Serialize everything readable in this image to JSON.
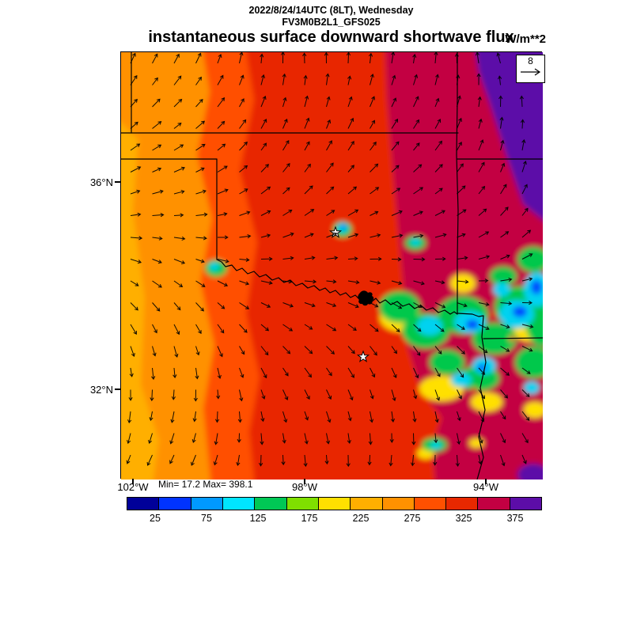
{
  "header": {
    "datetime_line": "2022/8/24/14UTC (8LT), Wednesday",
    "model_line": "FV3M0B2L1_GFS025"
  },
  "title": {
    "main": "instantaneous surface downward shortwave flux",
    "units": "W/m**2"
  },
  "map": {
    "lat_labels": [
      "36°N",
      "32°N"
    ],
    "lon_labels": [
      "102°W",
      "98°W",
      "94°W"
    ],
    "stats": "Min= 17.2 Max= 398.1",
    "reference_vector": {
      "value": "8"
    },
    "palette": {
      "amber": "#FFAF00",
      "orange": "#FF9100",
      "red_orange": "#FF5000",
      "red": "#E82800",
      "crimson": "#C30042",
      "purple": "#5C0DA8",
      "cloud_yellow": "#FFE000",
      "cloud_green": "#00C84B",
      "cloud_cyan": "#00D2F0",
      "cloud_blue": "#0048FF",
      "border": "#000000"
    }
  },
  "colorbar": {
    "labels": [
      "25",
      "75",
      "125",
      "175",
      "225",
      "275",
      "325",
      "375"
    ],
    "colors": [
      "#000099",
      "#0033FF",
      "#0099FF",
      "#00E5FF",
      "#00C855",
      "#7FE000",
      "#FFE000",
      "#FFAF00",
      "#FF9100",
      "#FF5000",
      "#E82800",
      "#C30042",
      "#5C0DA8"
    ]
  },
  "chart_data": {
    "type": "heatmap",
    "title": "instantaneous surface downward shortwave flux",
    "units": "W/m**2",
    "valid_time": "2022/8/24/14UTC (8LT), Wednesday",
    "model": "FV3M0B2L1_GFS025",
    "min": 17.2,
    "max": 398.1,
    "levels": [
      25,
      75,
      125,
      175,
      225,
      275,
      325,
      375
    ],
    "palette": [
      "#000099",
      "#0033FF",
      "#0099FF",
      "#00E5FF",
      "#00C855",
      "#7FE000",
      "#FFE000",
      "#FFAF00",
      "#FF9100",
      "#FF5000",
      "#E82800",
      "#C30042",
      "#5C0DA8"
    ],
    "lat_ticks": [
      "36°N",
      "32°N"
    ],
    "lon_ticks": [
      "102°W",
      "98°W",
      "94°W"
    ],
    "wind_reference_vector": 8,
    "overlay": "wind vectors (arrows) and state borders (OK/TX/KS/AR region)",
    "field_summary": [
      {
        "region": "far west band (~102W)",
        "value_range": "225-275"
      },
      {
        "region": "west band",
        "value_range": "275-325"
      },
      {
        "region": "central dominant area",
        "value_range": "325-375"
      },
      {
        "region": "east / southeast",
        "value_range": "300-375"
      },
      {
        "region": "northeast corner",
        "value_range": ">375"
      },
      {
        "region": "east-central cloud-shaded field",
        "value_range": "25-175"
      },
      {
        "region": "small cloud patches central OK and TX panhandle border",
        "value_range": "50-175"
      }
    ]
  }
}
